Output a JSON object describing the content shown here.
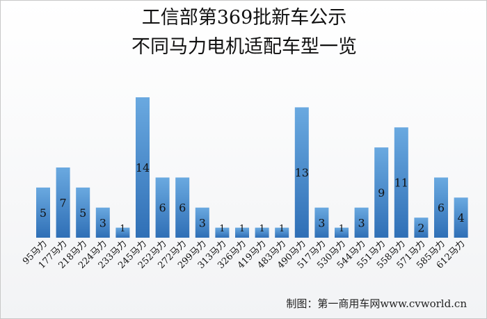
{
  "title_line1": "工信部第369批新车公示",
  "title_line2": "不同马力电机适配车型一览",
  "credit": "制图：第一商用车网www.cvworld.cn",
  "colors": {
    "bar_top": "#6aa9e0",
    "bar_bottom": "#2f6fb6",
    "label": "#111111"
  },
  "chart_data": {
    "type": "bar",
    "title": "工信部第369批新车公示 不同马力电机适配车型一览",
    "categories": [
      "95马力",
      "177马力",
      "218马力",
      "224马力",
      "233马力",
      "245马力",
      "252马力",
      "272马力",
      "299马力",
      "313马力",
      "326马力",
      "419马力",
      "483马力",
      "490马力",
      "517马力",
      "530马力",
      "544马力",
      "551马力",
      "558马力",
      "571马力",
      "585马力",
      "612马力"
    ],
    "values": [
      5,
      7,
      5,
      3,
      1,
      14,
      6,
      6,
      3,
      1,
      1,
      1,
      1,
      13,
      3,
      1,
      3,
      9,
      11,
      2,
      6,
      4
    ],
    "ylim": [
      0,
      14
    ],
    "grid": false,
    "legend": "none",
    "data_labels": true
  }
}
